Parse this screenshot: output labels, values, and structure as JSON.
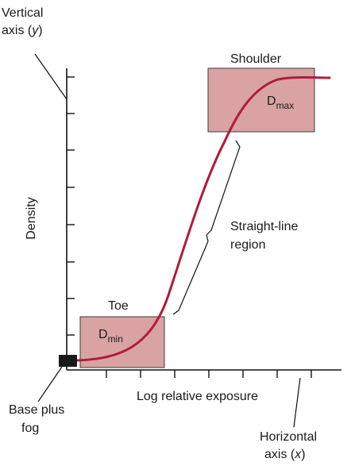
{
  "labels": {
    "vertical_axis_line1": "Vertical",
    "vertical_axis_line2_prefix": "axis (",
    "vertical_axis_var": "y",
    "vertical_axis_suffix": ")",
    "density": "Density",
    "shoulder": "Shoulder",
    "dmax_base": "D",
    "dmax_sub": "max",
    "straight_line_1": "Straight-line",
    "straight_line_2": "region",
    "toe": "Toe",
    "dmin_base": "D",
    "dmin_sub": "min",
    "base_plus_fog_1": "Base plus",
    "base_plus_fog_2": "fog",
    "log_relative_exposure": "Log relative exposure",
    "horizontal_axis_line1": "Horizontal",
    "horizontal_axis_line2_prefix": "axis (",
    "horizontal_axis_var": "x",
    "horizontal_axis_suffix": ")"
  },
  "colors": {
    "curve": "#b01c3c",
    "region_box": "#d9a3a3",
    "base_fog_marker": "#1a1a1a"
  }
}
